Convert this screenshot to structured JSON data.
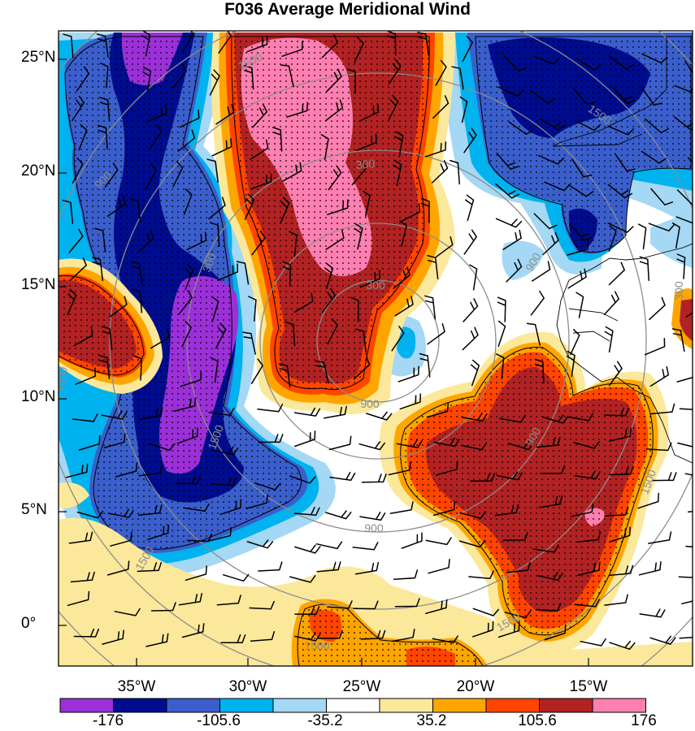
{
  "title": "F036 Average Meridional Wind",
  "lat_labels": [
    "25°N",
    "20°N",
    "15°N",
    "10°N",
    "5°N",
    "0°"
  ],
  "lon_labels": [
    "35°W",
    "30°W",
    "25°W",
    "20°W",
    "15°W"
  ],
  "colorbar": {
    "colors": [
      "#9b30d9",
      "#000c8f",
      "#3a5fcd",
      "#00b2ee",
      "#a4d8f5",
      "#ffffff",
      "#fbe89a",
      "#ffa500",
      "#ff4500",
      "#b22222",
      "#ff7fb0"
    ],
    "labels": [
      "-176",
      "-105.6",
      "-35.2",
      "35.2",
      "105.6",
      "176"
    ]
  },
  "contour_labels": [
    "1500",
    "900",
    "300",
    "300",
    "300",
    "900",
    "900",
    "900",
    "1500",
    "1500",
    "1500",
    "900",
    "1500",
    "1500",
    "300",
    "1500",
    "1500"
  ],
  "colors": {
    "frame": "#000000",
    "range_rings": "#8c8c8c",
    "coast": "#000000",
    "stipple": "#000000"
  }
}
